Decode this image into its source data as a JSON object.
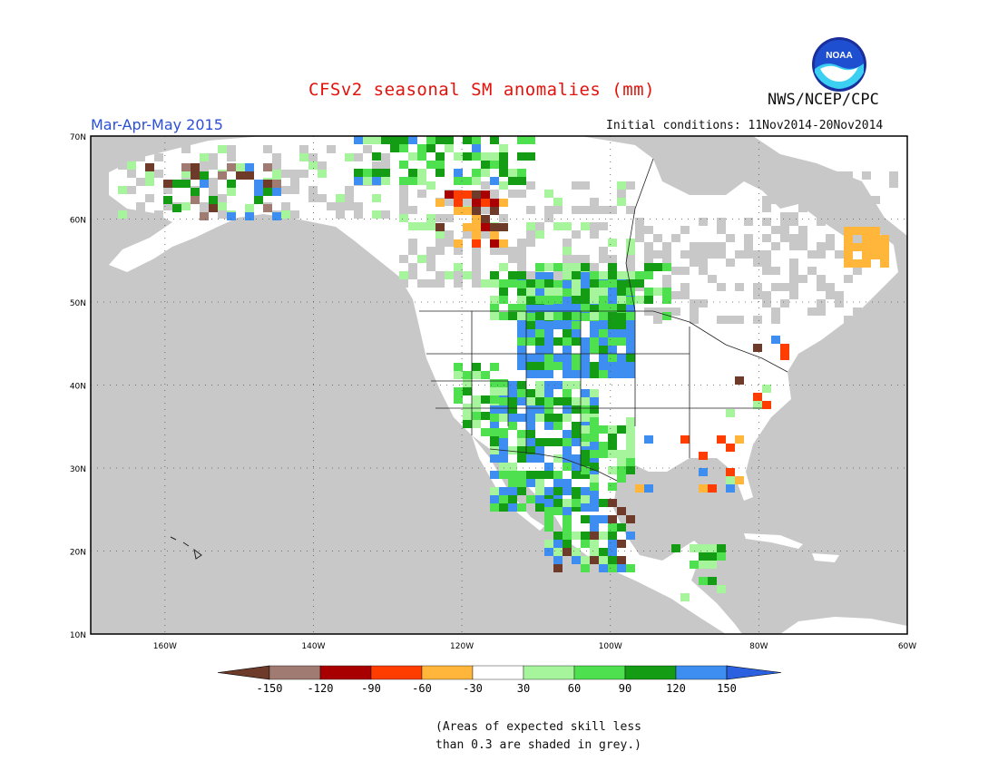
{
  "header": {
    "title": "CFSv2 seasonal SM anomalies (mm)",
    "season": "Mar-Apr-May 2015",
    "initial_conditions": "Initial conditions: 11Nov2014-20Nov2014",
    "agency": "NWS/NCEP/CPC",
    "logo_text": "NOAA"
  },
  "map": {
    "region": "North America",
    "lon_range": [
      -170,
      -60
    ],
    "lat_range": [
      10,
      70
    ],
    "lat_labels": [
      "70N",
      "60N",
      "50N",
      "40N",
      "30N",
      "20N",
      "10N"
    ],
    "lon_labels": [
      "160W",
      "140W",
      "120W",
      "100W",
      "80W",
      "60W"
    ],
    "grid": "dotted",
    "ocean_color": "#c8c8c8",
    "land_color": "#ffffff"
  },
  "legend": {
    "labels": [
      "-150",
      "-120",
      "-90",
      "-60",
      "-30",
      "30",
      "60",
      "90",
      "120",
      "150"
    ],
    "colors": [
      "#6e3b2a",
      "#a07b72",
      "#a80000",
      "#ff3d00",
      "#ffb63a",
      "#ffffff",
      "#a6f59c",
      "#4fe04f",
      "#149c14",
      "#3d8ef0",
      "#2b60e0"
    ]
  },
  "note": {
    "line1": "(Areas of expected skill less",
    "line2": "than 0.3 are shaded in grey.)"
  }
}
